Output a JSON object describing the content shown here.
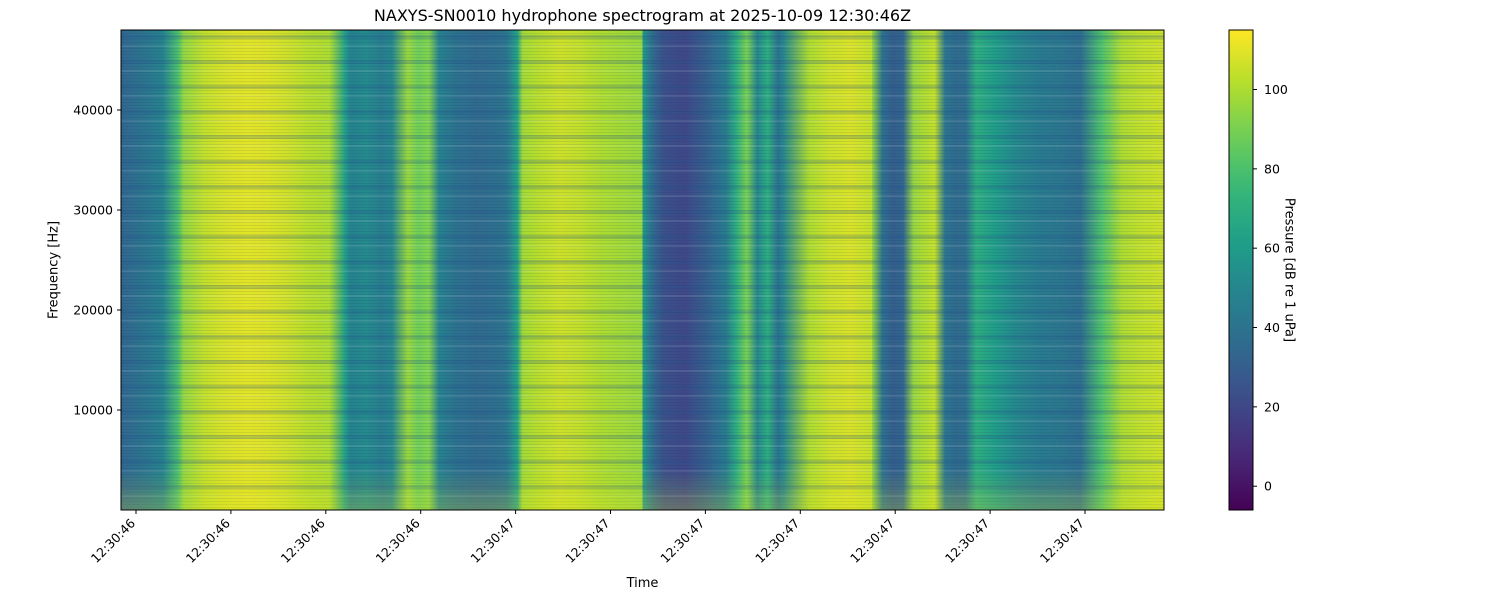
{
  "chart_data": {
    "type": "heatmap",
    "title": "NAXYS-SN0010 hydrophone spectrogram at 2025-10-09 12:30:46Z",
    "xlabel": "Time",
    "ylabel": "Frequency [Hz]",
    "colorbar_label": "Pressure [dB re 1 uPa]",
    "colormap": "viridis",
    "x_tick_labels": [
      "12:30:46",
      "12:30:46",
      "12:30:46",
      "12:30:46",
      "12:30:47",
      "12:30:47",
      "12:30:47",
      "12:30:47",
      "12:30:47",
      "12:30:47",
      "12:30:47"
    ],
    "y_ticks": [
      10000,
      20000,
      30000,
      40000
    ],
    "ylim": [
      0,
      48000
    ],
    "colorbar_ticks": [
      0,
      20,
      40,
      60,
      80,
      100
    ],
    "color_range": [
      -6,
      115
    ],
    "time_profile": {
      "x": [
        0.0,
        0.02,
        0.04,
        0.055,
        0.06,
        0.08,
        0.1,
        0.12,
        0.14,
        0.16,
        0.18,
        0.2,
        0.215,
        0.22,
        0.235,
        0.25,
        0.26,
        0.275,
        0.285,
        0.295,
        0.305,
        0.32,
        0.34,
        0.36,
        0.37,
        0.38,
        0.385,
        0.4,
        0.42,
        0.44,
        0.46,
        0.48,
        0.5,
        0.5,
        0.51,
        0.52,
        0.54,
        0.56,
        0.57,
        0.58,
        0.59,
        0.6,
        0.61,
        0.62,
        0.63,
        0.635,
        0.66,
        0.68,
        0.7,
        0.72,
        0.7,
        0.71,
        0.72,
        0.73,
        0.74,
        0.75,
        0.76,
        0.77,
        0.78,
        0.79,
        0.8,
        0.81,
        0.82,
        0.84,
        0.86,
        0.88,
        0.9,
        0.92,
        0.94,
        0.96,
        0.98,
        1.0
      ],
      "level_db": [
        34,
        40,
        48,
        80,
        95,
        104,
        108,
        110,
        109,
        106,
        102,
        100,
        62,
        48,
        52,
        45,
        50,
        96,
        88,
        92,
        48,
        40,
        36,
        38,
        42,
        64,
        98,
        102,
        106,
        104,
        100,
        98,
        96,
        60,
        36,
        24,
        20,
        30,
        38,
        45,
        70,
        90,
        50,
        70,
        40,
        50,
        100,
        106,
        108,
        104,
        102,
        98,
        96,
        40,
        30,
        34,
        96,
        100,
        104,
        42,
        36,
        38,
        70,
        60,
        50,
        44,
        42,
        38,
        80,
        100,
        104,
        106
      ]
    }
  }
}
